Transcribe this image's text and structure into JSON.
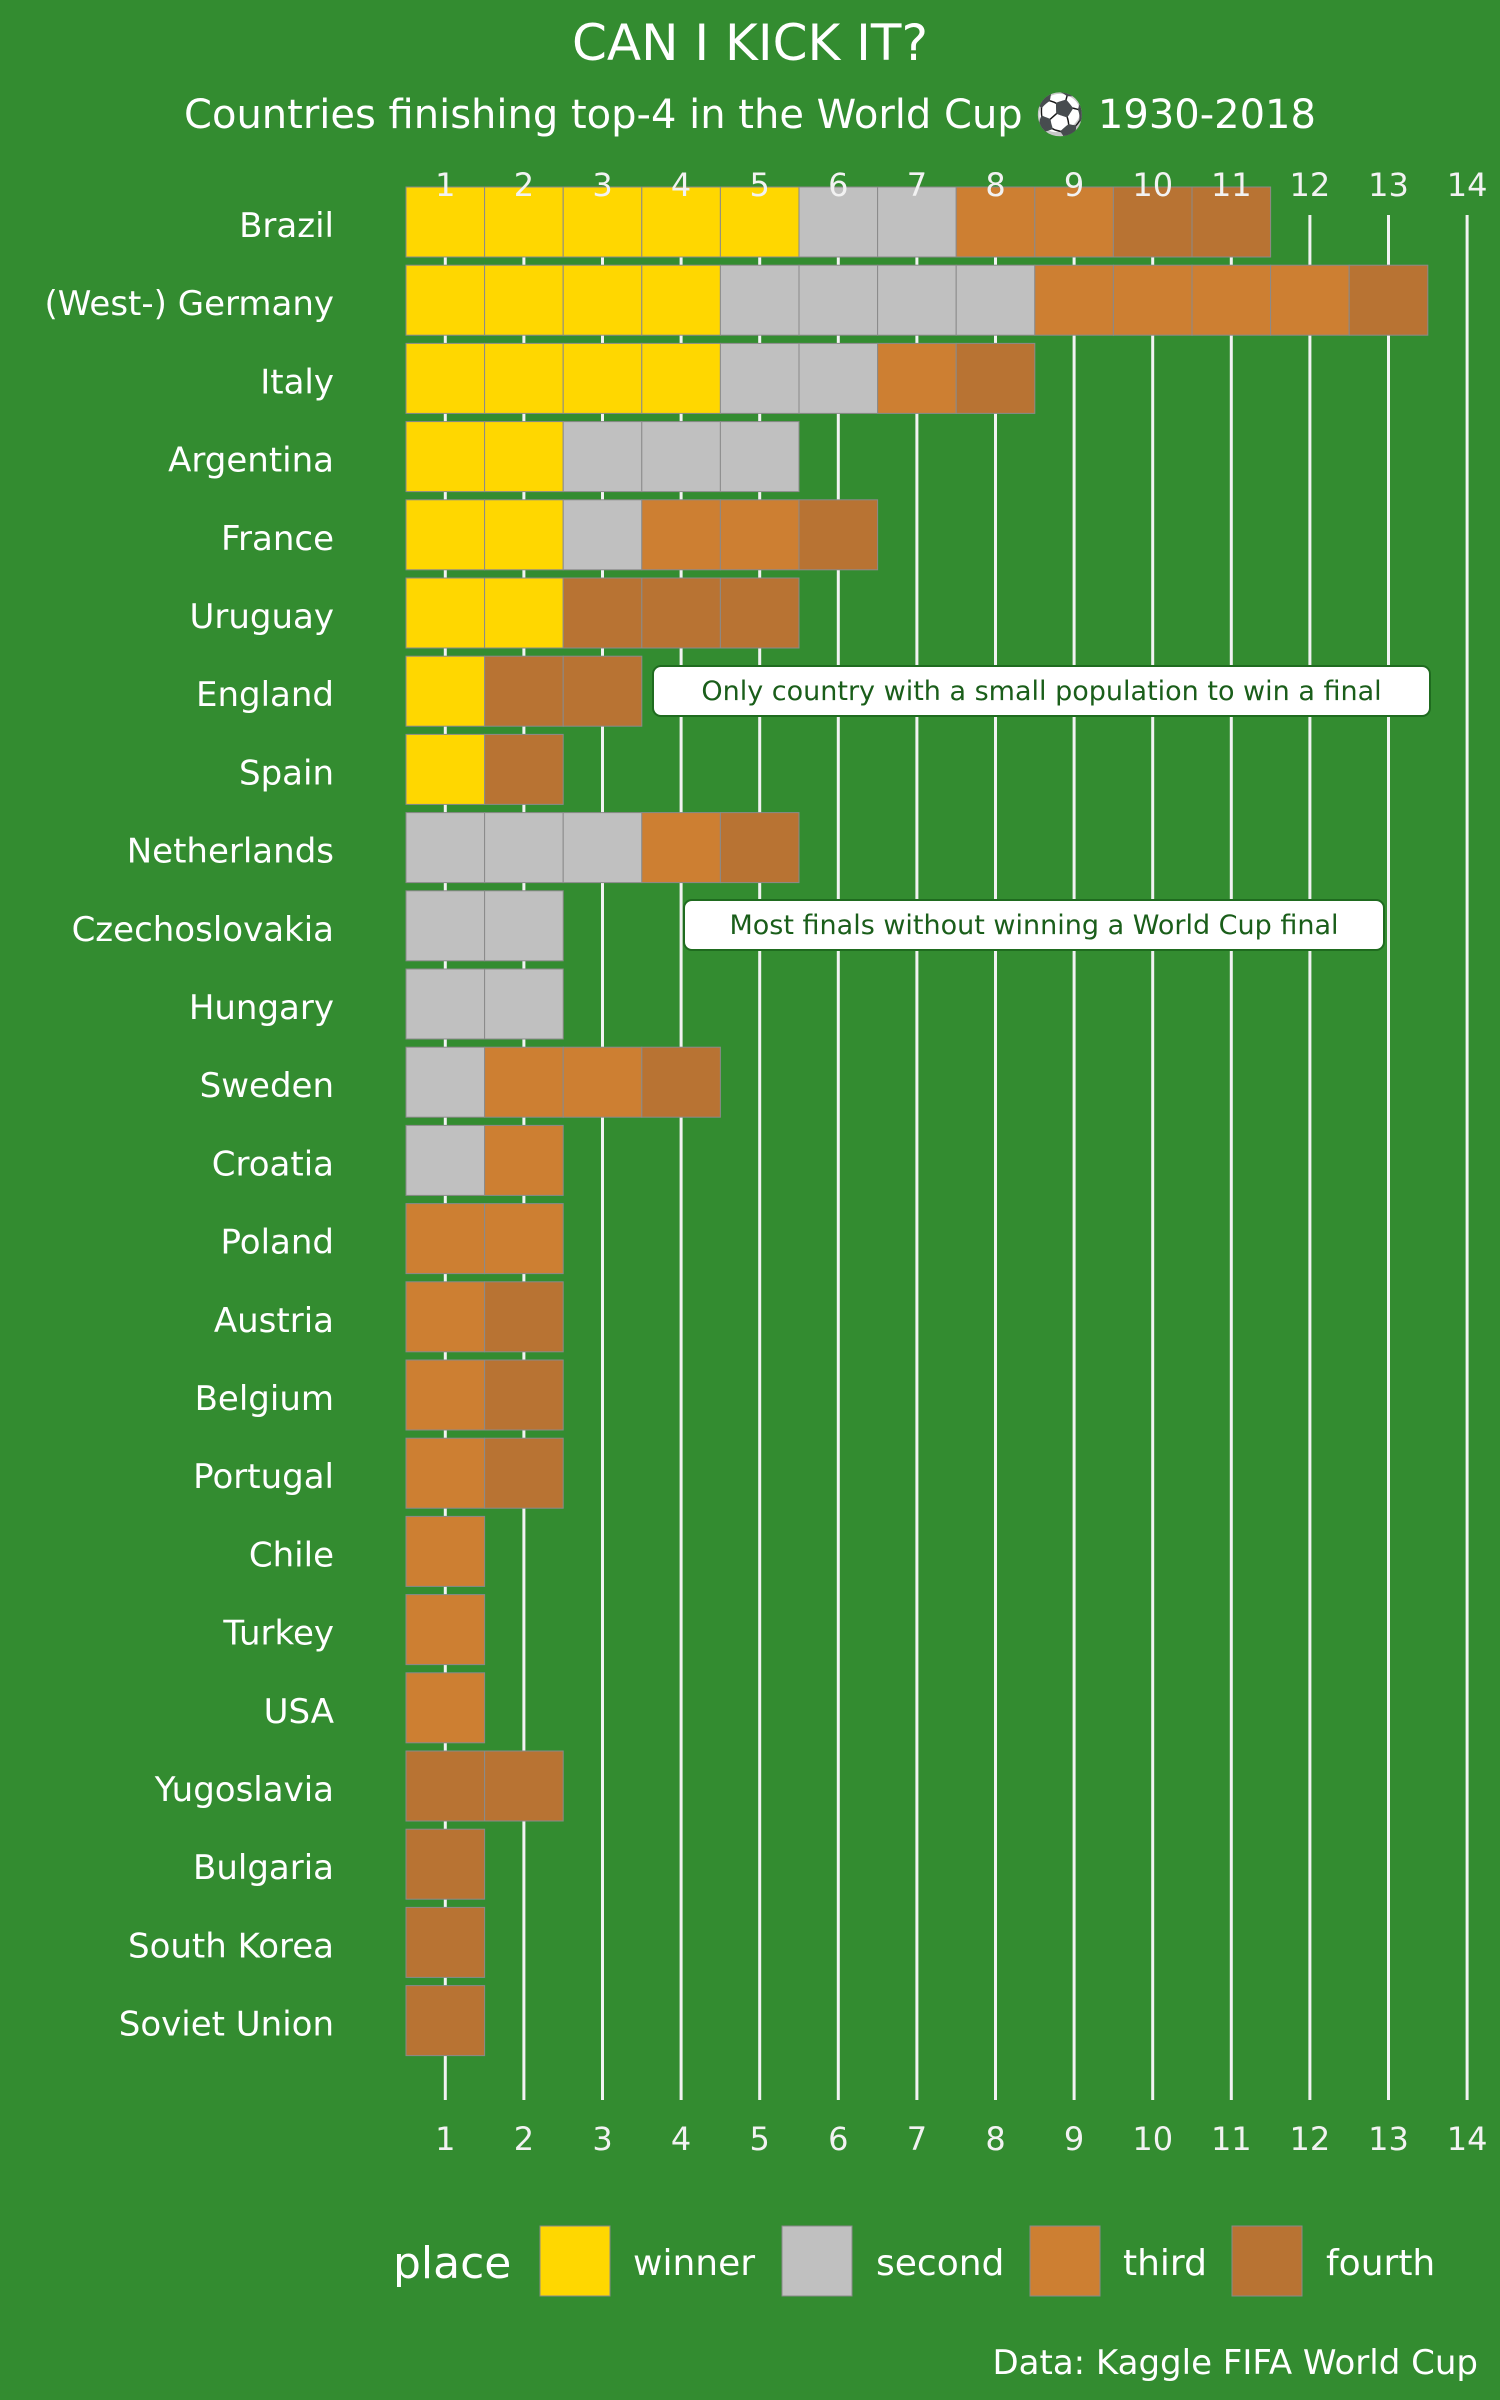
{
  "chart_data": {
    "type": "bar",
    "stacked": true,
    "orientation": "horizontal",
    "title": "CAN I KICK IT?",
    "subtitle": "Countries finishing top-4 in the World Cup ⚽ 1930-2018",
    "caption": "Data: Kaggle FIFA World Cup",
    "x_ticks": [
      1,
      2,
      3,
      4,
      5,
      6,
      7,
      8,
      9,
      10,
      11,
      12,
      13,
      14
    ],
    "xlim": [
      0.5,
      14
    ],
    "grid": true,
    "x_axis_position": "top and bottom",
    "legend": {
      "title": "place",
      "position": "bottom",
      "entries": [
        "winner",
        "second",
        "third",
        "fourth"
      ]
    },
    "series_colors": {
      "winner": "#ffd700",
      "second": "#c0c0c0",
      "third": "#cd7f32",
      "fourth": "#b87333"
    },
    "categories": [
      "Brazil",
      "(West-) Germany",
      "Italy",
      "Argentina",
      "France",
      "Uruguay",
      "England",
      "Spain",
      "Netherlands",
      "Czechoslovakia",
      "Hungary",
      "Sweden",
      "Croatia",
      "Poland",
      "Austria",
      "Belgium",
      "Portugal",
      "Chile",
      "Turkey",
      "USA",
      "Yugoslavia",
      "Bulgaria",
      "South Korea",
      "Soviet Union"
    ],
    "series": [
      {
        "name": "winner",
        "values": [
          5,
          4,
          4,
          2,
          2,
          2,
          1,
          1,
          0,
          0,
          0,
          0,
          0,
          0,
          0,
          0,
          0,
          0,
          0,
          0,
          0,
          0,
          0,
          0
        ]
      },
      {
        "name": "second",
        "values": [
          2,
          4,
          2,
          3,
          1,
          0,
          0,
          0,
          3,
          2,
          2,
          1,
          1,
          0,
          0,
          0,
          0,
          0,
          0,
          0,
          0,
          0,
          0,
          0
        ]
      },
      {
        "name": "third",
        "values": [
          2,
          4,
          1,
          0,
          2,
          0,
          0,
          0,
          1,
          0,
          0,
          2,
          1,
          2,
          1,
          1,
          1,
          1,
          1,
          1,
          0,
          0,
          0,
          0
        ]
      },
      {
        "name": "fourth",
        "values": [
          2,
          1,
          1,
          0,
          1,
          3,
          2,
          1,
          1,
          0,
          0,
          1,
          0,
          0,
          1,
          1,
          1,
          0,
          0,
          0,
          2,
          1,
          1,
          1
        ]
      }
    ],
    "annotations": [
      {
        "text": "Only country with a small population to win a final",
        "category": "Uruguay"
      },
      {
        "text": "Most finals without winning a World Cup final",
        "category": "Netherlands"
      }
    ]
  }
}
